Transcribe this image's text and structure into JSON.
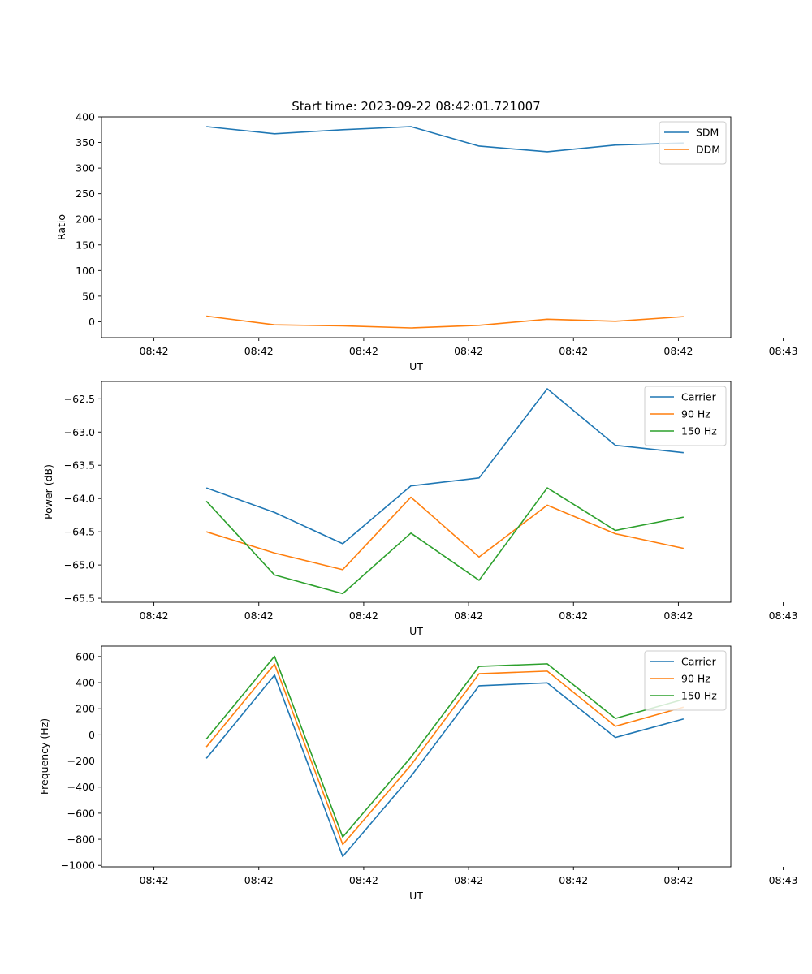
{
  "chart_data": [
    {
      "type": "line",
      "title": "Start time: 2023-09-22 08:42:01.721007",
      "xlabel": "UT",
      "ylabel": "Ratio",
      "x_tick_labels": [
        "08:42",
        "08:42",
        "08:42",
        "08:42",
        "08:42",
        "08:42",
        "08:43"
      ],
      "x": [
        0.5,
        1.15,
        1.8,
        2.45,
        3.1,
        3.75,
        4.4,
        5.05
      ],
      "xlim": [
        -0.5,
        5.5
      ],
      "ylim": [
        -31,
        400
      ],
      "y_ticks": [
        0,
        50,
        100,
        150,
        200,
        250,
        300,
        350,
        400
      ],
      "y_tick_labels": [
        "0",
        "50",
        "100",
        "150",
        "200",
        "250",
        "300",
        "350",
        "400"
      ],
      "legend_position": "top-right",
      "series": [
        {
          "name": "SDM",
          "color": "#1f77b4",
          "values": [
            381,
            367,
            375,
            381,
            343,
            332,
            345,
            349
          ]
        },
        {
          "name": "DDM",
          "color": "#ff7f0e",
          "values": [
            11,
            -6,
            -8,
            -12,
            -7,
            5,
            1,
            10
          ]
        }
      ]
    },
    {
      "type": "line",
      "title": "",
      "xlabel": "UT",
      "ylabel": "Power (dB)",
      "x_tick_labels": [
        "08:42",
        "08:42",
        "08:42",
        "08:42",
        "08:42",
        "08:42",
        "08:43"
      ],
      "x": [
        0.5,
        1.15,
        1.8,
        2.45,
        3.1,
        3.75,
        4.4,
        5.05
      ],
      "xlim": [
        -0.5,
        5.5
      ],
      "ylim": [
        -65.56,
        -62.24
      ],
      "y_ticks": [
        -65.5,
        -65.0,
        -64.5,
        -64.0,
        -63.5,
        -63.0,
        -62.5
      ],
      "y_tick_labels": [
        "−65.5",
        "−65.0",
        "−64.5",
        "−64.0",
        "−63.5",
        "−63.0",
        "−62.5"
      ],
      "legend_position": "top-right",
      "series": [
        {
          "name": "Carrier",
          "color": "#1f77b4",
          "values": [
            -63.84,
            -64.21,
            -64.68,
            -63.81,
            -63.69,
            -62.35,
            -63.2,
            -63.31
          ]
        },
        {
          "name": "90 Hz",
          "color": "#ff7f0e",
          "values": [
            -64.5,
            -64.82,
            -65.07,
            -63.98,
            -64.88,
            -64.1,
            -64.53,
            -64.75
          ]
        },
        {
          "name": "150 Hz",
          "color": "#2ca02c",
          "values": [
            -64.04,
            -65.15,
            -65.43,
            -64.52,
            -65.23,
            -63.84,
            -64.48,
            -64.28
          ]
        }
      ]
    },
    {
      "type": "line",
      "title": "",
      "xlabel": "UT",
      "ylabel": "Frequency (Hz)",
      "x_tick_labels": [
        "08:42",
        "08:42",
        "08:42",
        "08:42",
        "08:42",
        "08:42",
        "08:43"
      ],
      "x": [
        0.5,
        1.15,
        1.8,
        2.45,
        3.1,
        3.75,
        4.4,
        5.05
      ],
      "xlim": [
        -0.5,
        5.5
      ],
      "ylim": [
        -1011,
        680
      ],
      "y_ticks": [
        -1000,
        -800,
        -600,
        -400,
        -200,
        0,
        200,
        400,
        600
      ],
      "y_tick_labels": [
        "−1000",
        "−800",
        "−600",
        "−400",
        "−200",
        "0",
        "200",
        "400",
        "600"
      ],
      "legend_position": "top-right",
      "series": [
        {
          "name": "Carrier",
          "color": "#1f77b4",
          "values": [
            -180,
            458,
            -932,
            -318,
            376,
            398,
            -20,
            122
          ]
        },
        {
          "name": "90 Hz",
          "color": "#ff7f0e",
          "values": [
            -92,
            542,
            -840,
            -232,
            468,
            488,
            66,
            212
          ]
        },
        {
          "name": "150 Hz",
          "color": "#2ca02c",
          "values": [
            -32,
            602,
            -782,
            -172,
            524,
            544,
            126,
            272
          ]
        }
      ]
    }
  ]
}
